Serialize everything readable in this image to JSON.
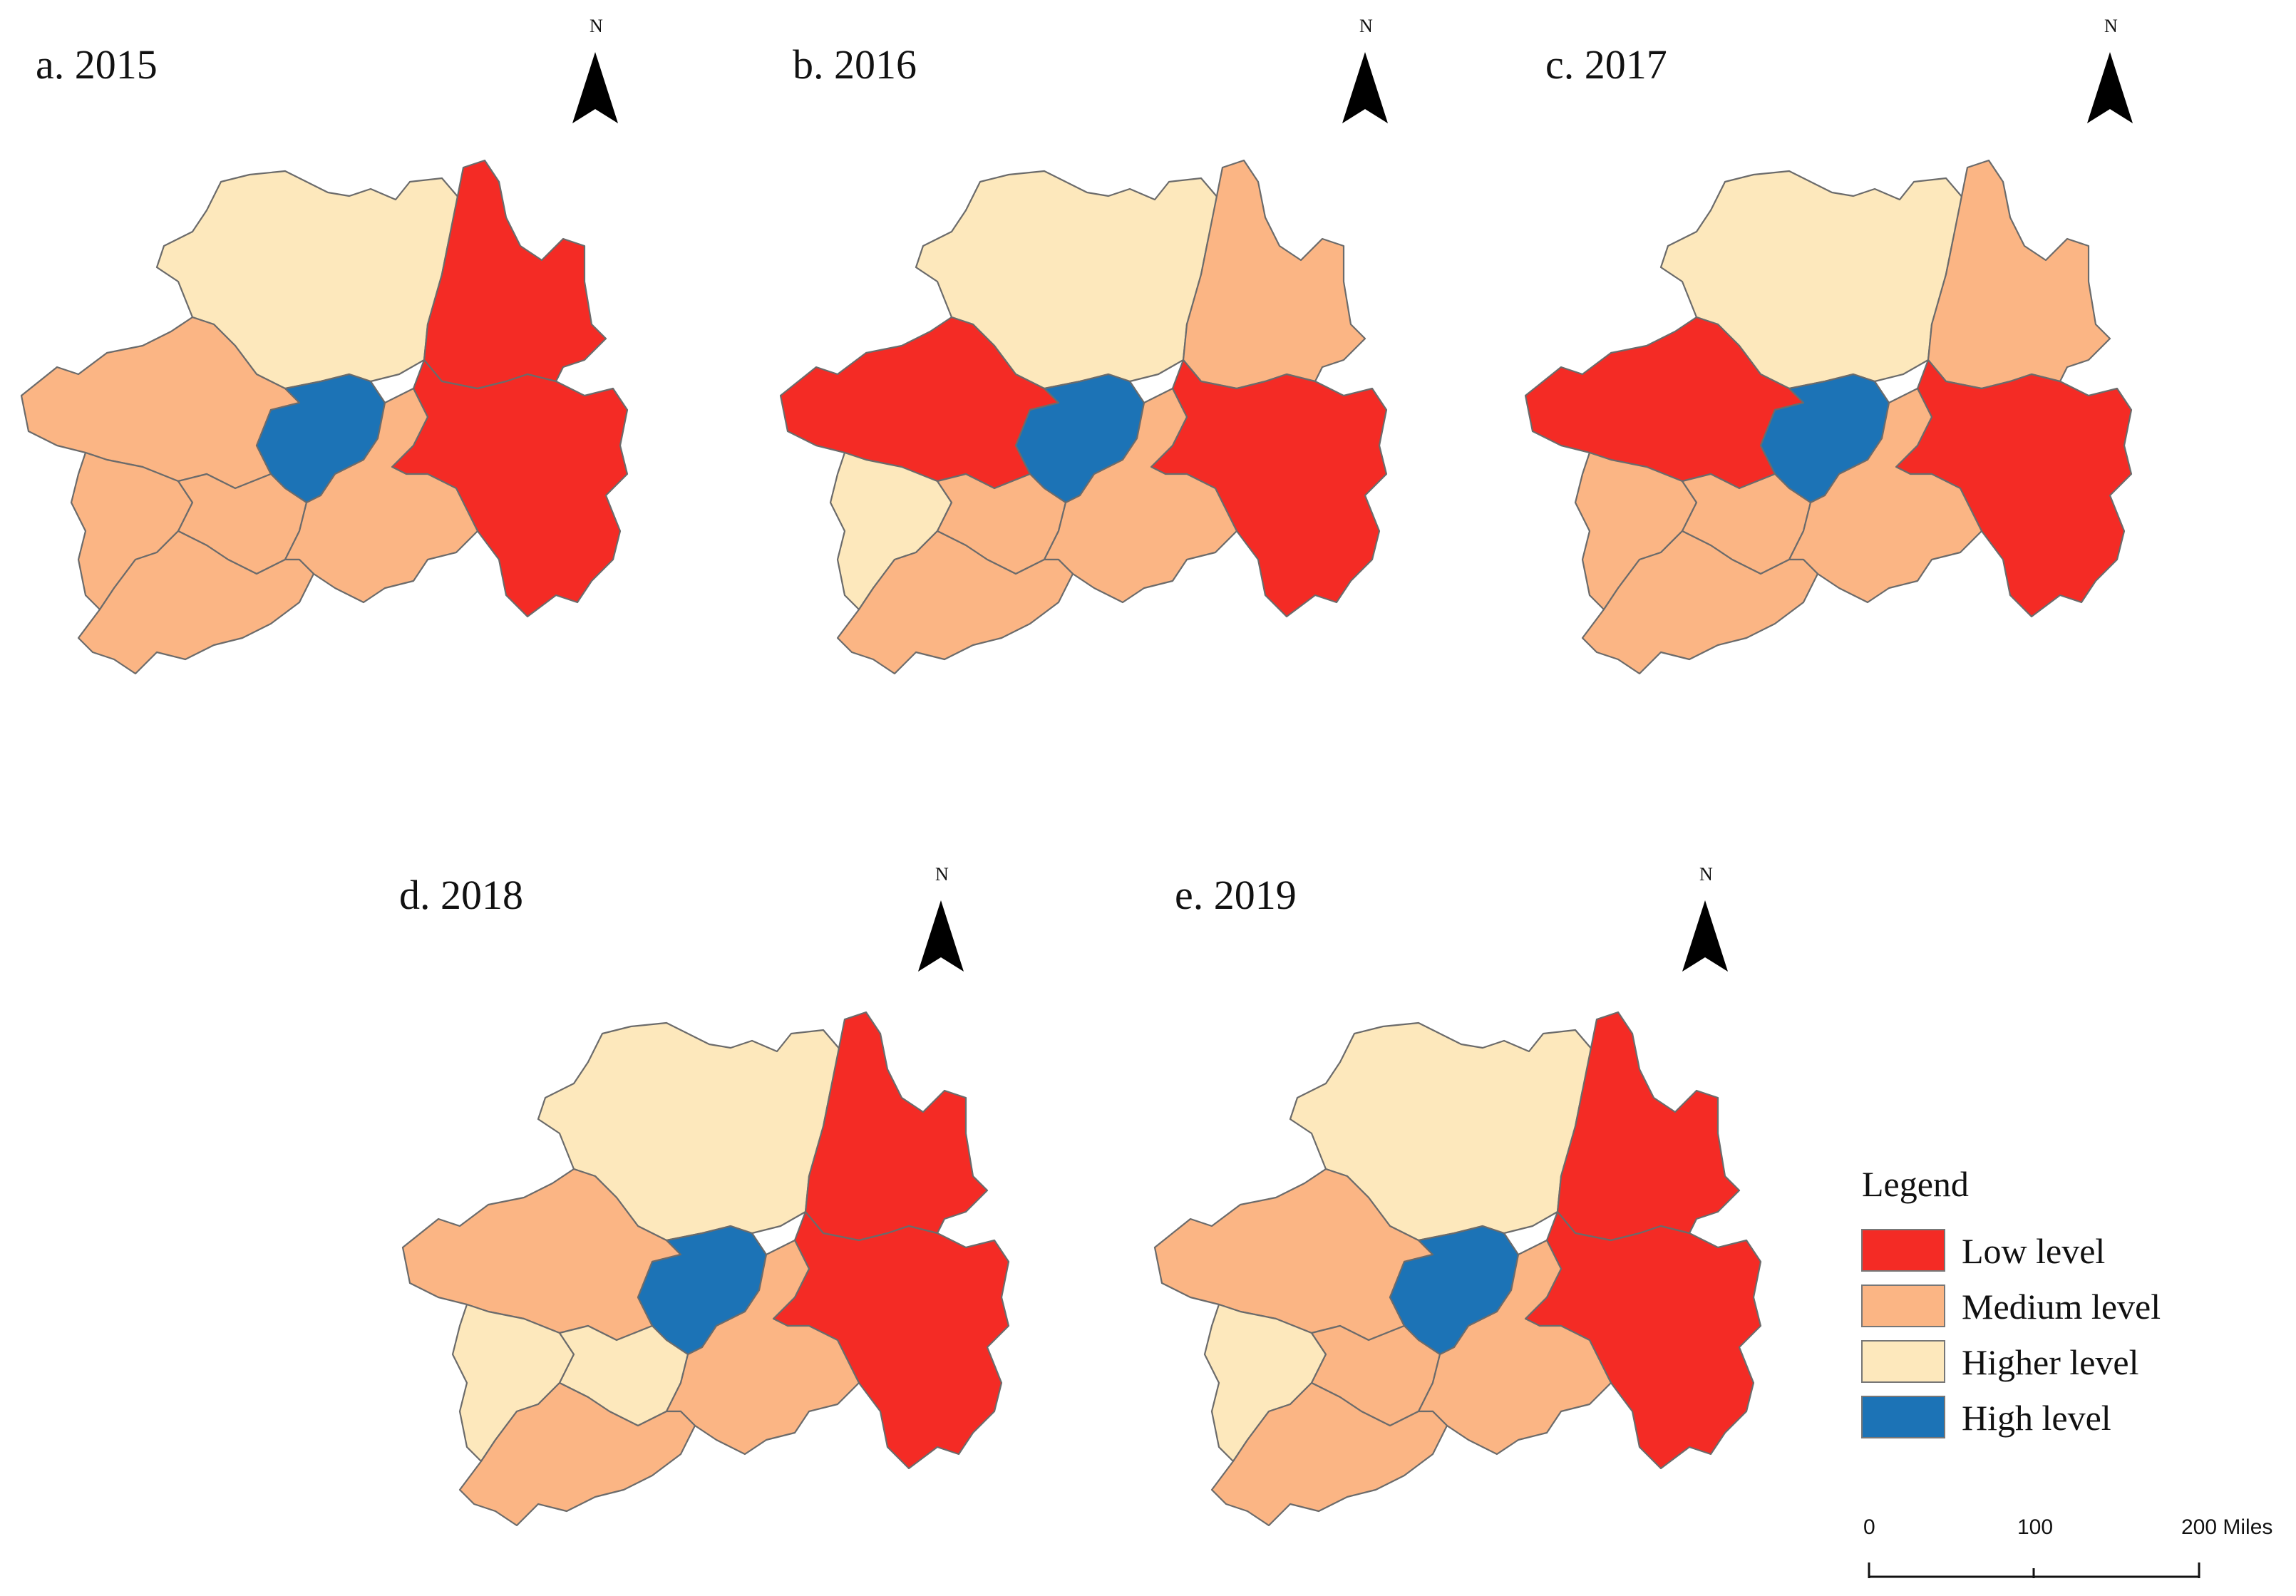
{
  "colors": {
    "low": "#f42b25",
    "medium": "#fbb584",
    "higher": "#fde8bc",
    "high": "#1c73b6"
  },
  "panels": [
    {
      "label": "a. 2015",
      "north": "N",
      "regions": {
        "zunyi": "higher",
        "tongren": "low",
        "bijie": "medium",
        "guiyang": "high",
        "liupanshui": "medium",
        "anshun": "medium",
        "qiannan": "medium",
        "qianxinan": "medium",
        "qiandongnan": "low"
      }
    },
    {
      "label": "b. 2016",
      "north": "N",
      "regions": {
        "zunyi": "higher",
        "tongren": "medium",
        "bijie": "low",
        "guiyang": "high",
        "liupanshui": "higher",
        "anshun": "medium",
        "qiannan": "medium",
        "qianxinan": "medium",
        "qiandongnan": "low"
      }
    },
    {
      "label": "c. 2017",
      "north": "N",
      "regions": {
        "zunyi": "higher",
        "tongren": "medium",
        "bijie": "low",
        "guiyang": "high",
        "liupanshui": "medium",
        "anshun": "medium",
        "qiannan": "medium",
        "qianxinan": "medium",
        "qiandongnan": "low"
      }
    },
    {
      "label": "d. 2018",
      "north": "N",
      "regions": {
        "zunyi": "higher",
        "tongren": "low",
        "bijie": "medium",
        "guiyang": "high",
        "liupanshui": "higher",
        "anshun": "higher",
        "qiannan": "medium",
        "qianxinan": "medium",
        "qiandongnan": "low"
      }
    },
    {
      "label": "e. 2019",
      "north": "N",
      "regions": {
        "zunyi": "higher",
        "tongren": "low",
        "bijie": "medium",
        "guiyang": "high",
        "liupanshui": "higher",
        "anshun": "medium",
        "qiannan": "medium",
        "qianxinan": "medium",
        "qiandongnan": "low"
      }
    }
  ],
  "legend": {
    "title": "Legend",
    "items": [
      {
        "key": "low",
        "label": "Low level"
      },
      {
        "key": "medium",
        "label": "Medium level"
      },
      {
        "key": "higher",
        "label": "Higher level"
      },
      {
        "key": "high",
        "label": "High level"
      }
    ]
  },
  "scale_bar": {
    "ticks": [
      "0",
      "100",
      "200 Miles"
    ]
  }
}
